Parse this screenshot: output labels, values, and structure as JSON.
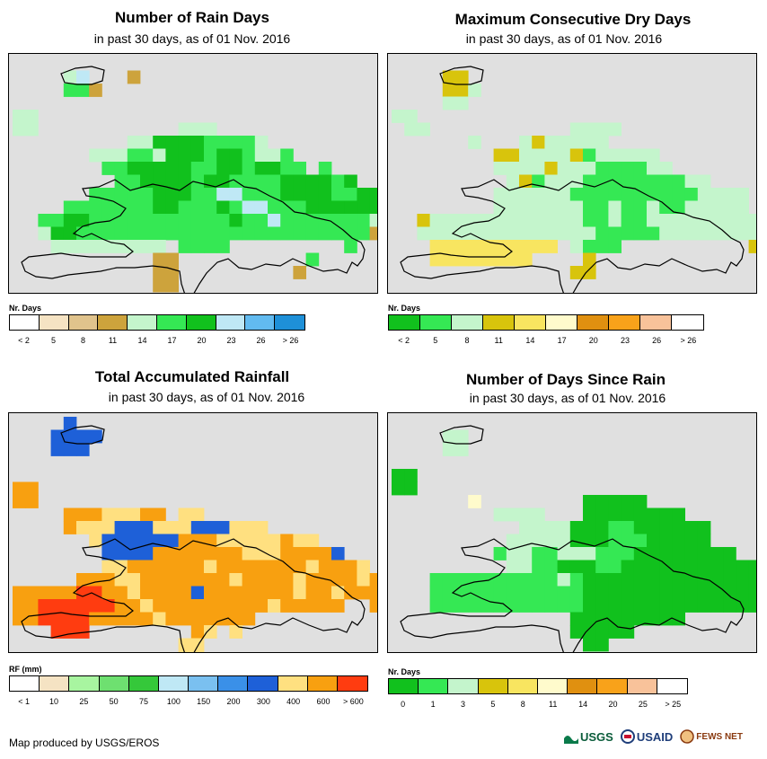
{
  "panels": [
    {
      "title": "Number of Rain Days",
      "subtitle": "in past 30 days, as of 01 Nov. 2016",
      "legend_title": "Nr. Days",
      "legend_labels": [
        "< 2",
        "5",
        "8",
        "11",
        "14",
        "17",
        "20",
        "23",
        "26",
        "> 26"
      ],
      "legend_colors": [
        "#ffffff",
        "#f5e3c3",
        "#e0c38c",
        "#cda33c",
        "#c4f5cc",
        "#35e854",
        "#11c11d",
        "#bfe8f5",
        "#62bbf0",
        "#1e90d8"
      ],
      "cells": "rain_days"
    },
    {
      "title": "Maximum Consecutive Dry Days",
      "subtitle": "in past 30 days, as of 01 Nov. 2016",
      "legend_title": "Nr. Days",
      "legend_labels": [
        "< 2",
        "5",
        "8",
        "11",
        "14",
        "17",
        "20",
        "23",
        "26",
        "> 26"
      ],
      "legend_colors": [
        "#11c11d",
        "#35e854",
        "#c4f5cc",
        "#d8c40c",
        "#f8e560",
        "#fffbcc",
        "#e09010",
        "#f8a21a",
        "#f8c29a",
        "#ffffff"
      ],
      "cells": "dry_days"
    },
    {
      "title": "Total Accumulated Rainfall",
      "subtitle": "in past 30 days, as of 01 Nov. 2016",
      "legend_title": "RF (mm)",
      "legend_labels": [
        "< 1",
        "10",
        "25",
        "50",
        "75",
        "100",
        "150",
        "200",
        "300",
        "400",
        "600",
        "> 600"
      ],
      "legend_colors": [
        "#ffffff",
        "#f5e3c3",
        "#a8f5a0",
        "#6ee070",
        "#35c83a",
        "#bfe8f5",
        "#7ac0f0",
        "#3a90e8",
        "#1e60d8",
        "#ffe080",
        "#f8a010",
        "#ff3c10"
      ],
      "cells": "rainfall"
    },
    {
      "title": "Number of Days Since Rain",
      "subtitle": "in past 30 days, as of 01 Nov. 2016",
      "legend_title": "Nr. Days",
      "legend_labels": [
        "0",
        "1",
        "3",
        "5",
        "8",
        "11",
        "14",
        "20",
        "25",
        "> 25"
      ],
      "legend_colors": [
        "#11c11d",
        "#35e854",
        "#c4f5cc",
        "#d8c40c",
        "#f8e560",
        "#fffbcc",
        "#e09010",
        "#f8a21a",
        "#f8c29a",
        "#ffffff"
      ],
      "cells": "since_rain"
    }
  ],
  "footer": "Map produced by USGS/EROS",
  "logos": [
    "USGS",
    "USAID",
    "FEWS NET"
  ]
}
